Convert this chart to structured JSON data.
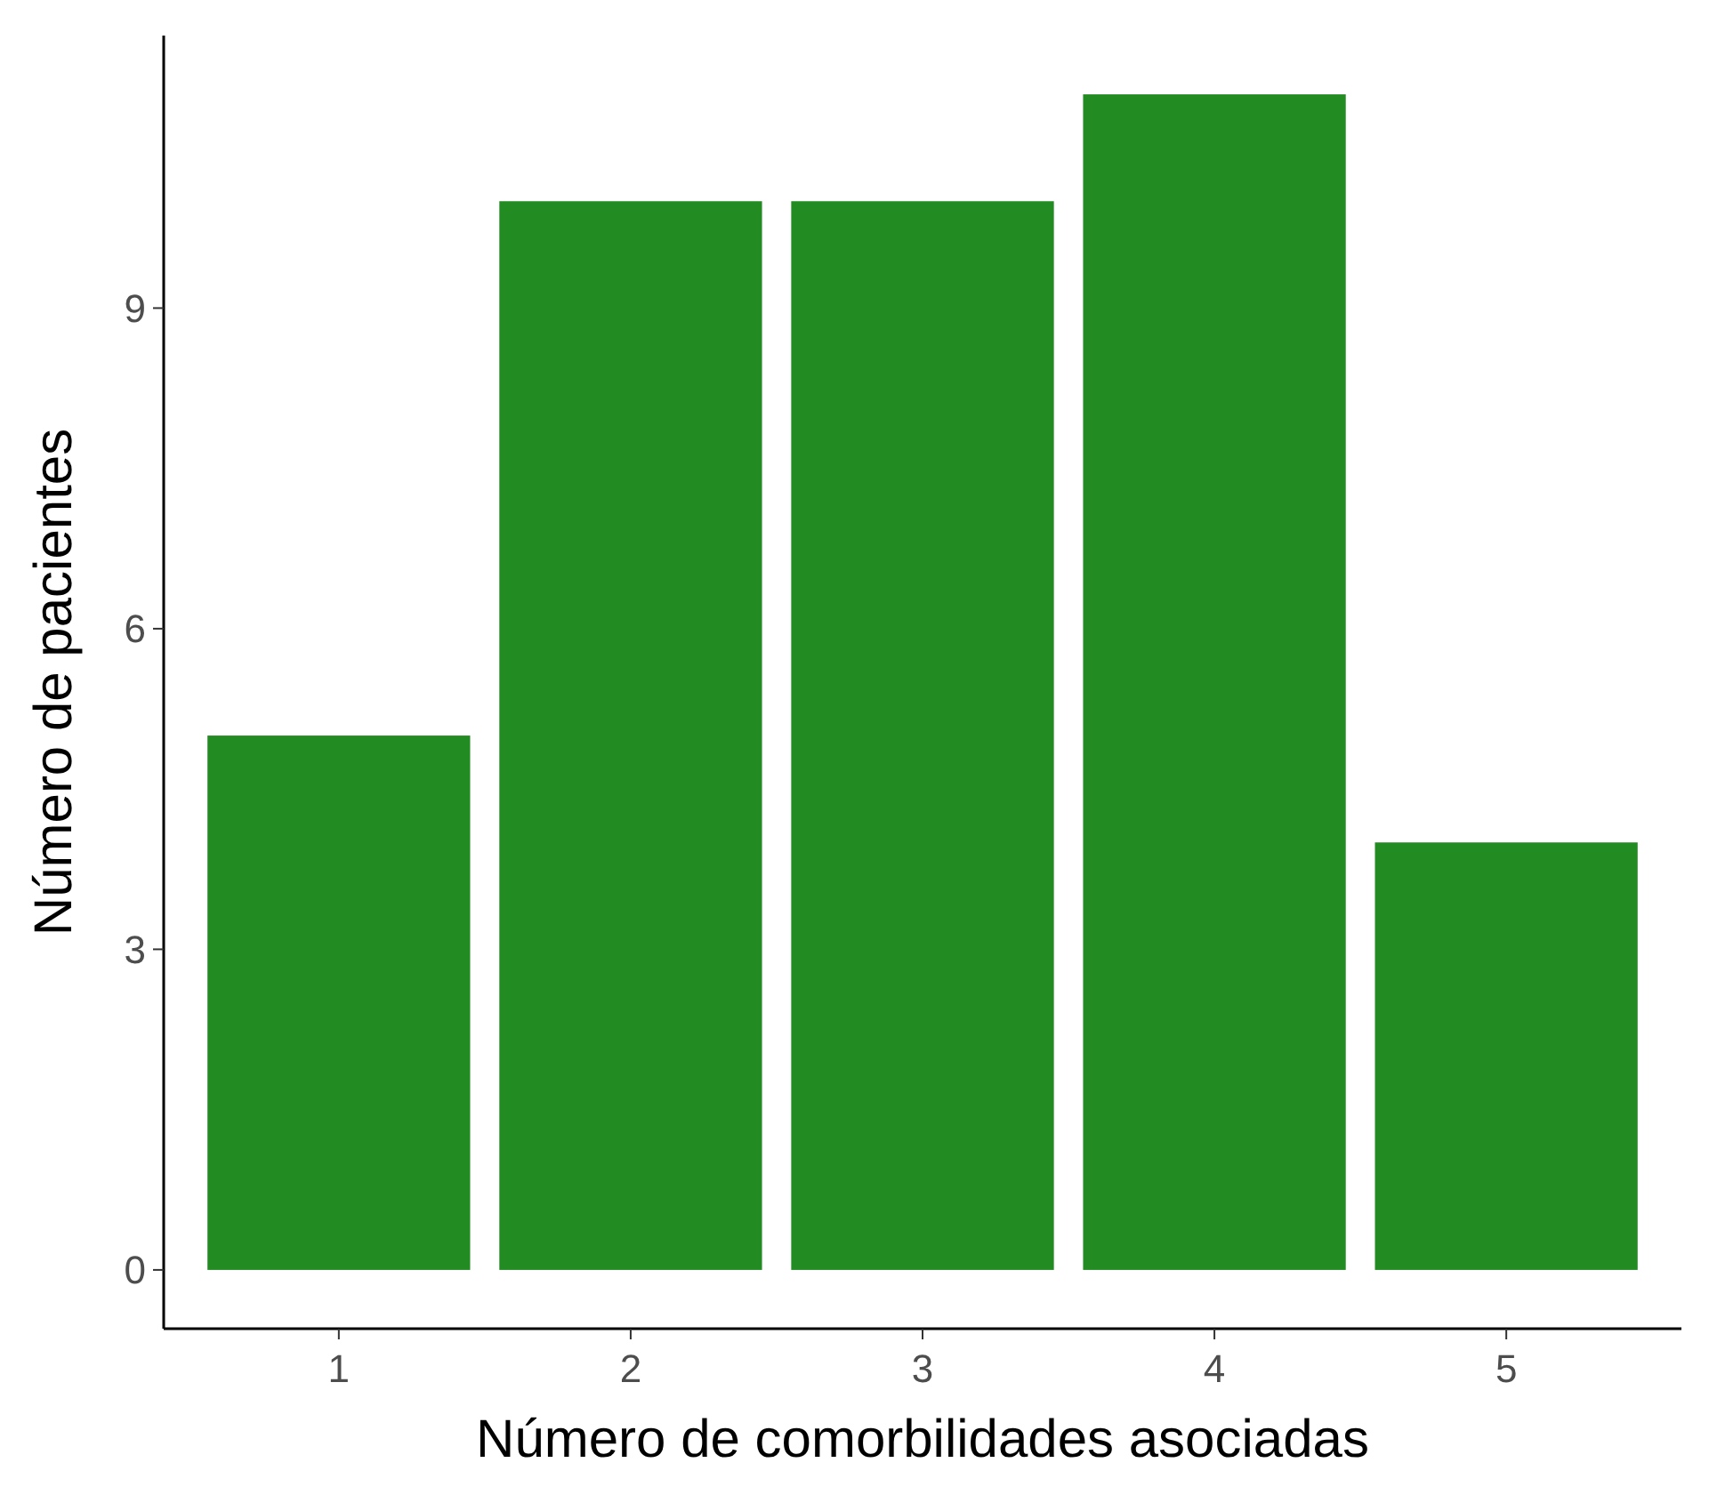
{
  "chart_data": {
    "type": "bar",
    "xlabel": "Número de comorbilidades asociadas",
    "ylabel": "Número de pacientes",
    "categories": [
      "1",
      "2",
      "3",
      "4",
      "5"
    ],
    "values": [
      5,
      10,
      10,
      11,
      4
    ],
    "color": "#228b22",
    "ylim": [
      -0.55,
      11.55
    ],
    "yticks": [
      0,
      3,
      6,
      9
    ],
    "grid": false
  }
}
